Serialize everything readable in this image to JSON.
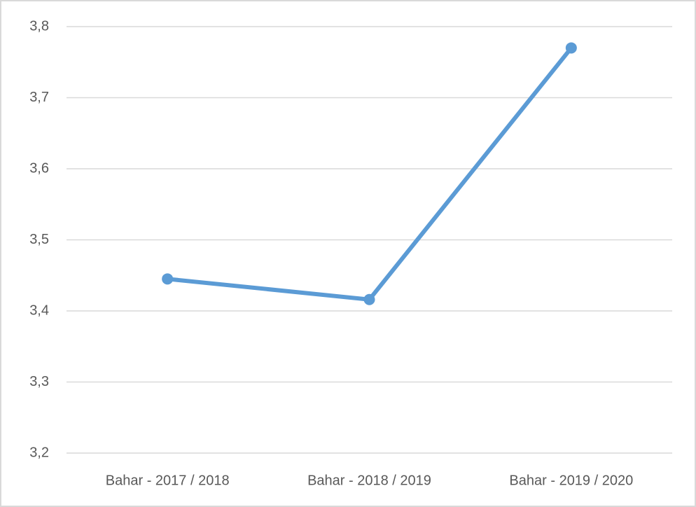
{
  "chart_data": {
    "type": "line",
    "categories": [
      "Bahar - 2017 / 2018",
      "Bahar - 2018 / 2019",
      "Bahar - 2019 / 2020"
    ],
    "series": [
      {
        "name": null,
        "color": "#5b9bd5",
        "values": [
          3.445,
          3.416,
          3.77
        ]
      }
    ],
    "ylim": [
      3.2,
      3.8
    ],
    "yticks": [
      {
        "value": 3.2,
        "label": "3,2"
      },
      {
        "value": 3.3,
        "label": "3,3"
      },
      {
        "value": 3.4,
        "label": "3,4"
      },
      {
        "value": 3.5,
        "label": "3,5"
      },
      {
        "value": 3.6,
        "label": "3,6"
      },
      {
        "value": 3.7,
        "label": "3,7"
      },
      {
        "value": 3.8,
        "label": "3,8"
      }
    ],
    "grid": true
  }
}
